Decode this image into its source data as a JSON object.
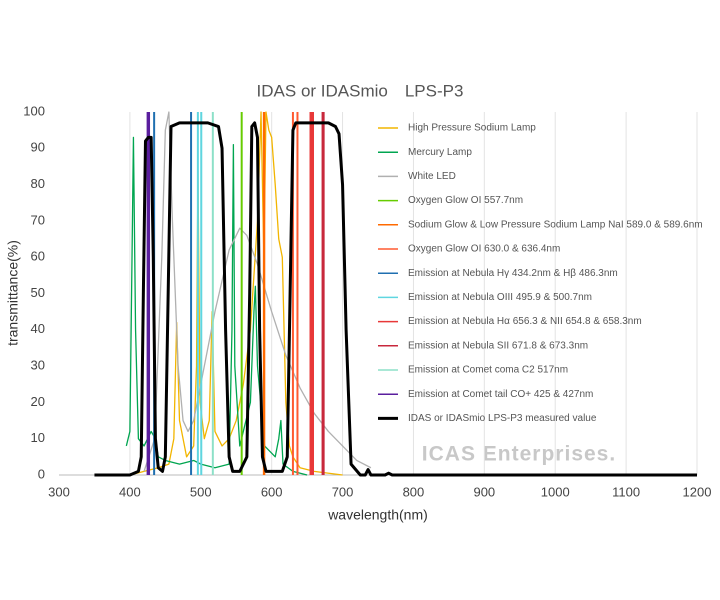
{
  "chart_data": {
    "type": "line",
    "title": "IDAS or IDASmio　LPS-P3",
    "x_label": "wavelength(nm)",
    "y_label": "transmittance(%)",
    "watermark": "ICAS Enterprises.",
    "xlim": [
      300,
      1200
    ],
    "xticks": [
      300,
      400,
      500,
      600,
      700,
      800,
      900,
      1000,
      1100,
      1200
    ],
    "ylim": [
      0,
      100
    ],
    "yticks": [
      0,
      10,
      20,
      30,
      40,
      50,
      60,
      70,
      80,
      90,
      100
    ],
    "grid": "x",
    "series": [
      {
        "name": "High Pressure Sodium Lamp",
        "color": "#f2b500",
        "x": [
          400,
          420,
          440,
          455,
          462,
          466,
          470,
          480,
          490,
          494,
          496,
          499,
          505,
          512,
          516,
          520,
          530,
          540,
          550,
          560,
          570,
          580,
          585,
          589,
          592,
          596,
          600,
          605,
          610,
          615,
          620,
          625,
          630,
          640,
          660,
          700
        ],
        "values": [
          0,
          1,
          2,
          3,
          10,
          42,
          15,
          5,
          8,
          30,
          84,
          20,
          10,
          15,
          45,
          12,
          8,
          10,
          15,
          25,
          40,
          70,
          100,
          60,
          100,
          95,
          93,
          80,
          65,
          60,
          20,
          8,
          5,
          2,
          1,
          0
        ]
      },
      {
        "name": "Mercury Lamp",
        "color": "#00a550",
        "x": [
          395,
          400,
          403,
          405,
          408,
          412,
          420,
          430,
          436,
          440,
          450,
          470,
          490,
          500,
          520,
          540,
          544,
          546,
          548,
          555,
          570,
          575,
          577,
          580,
          590,
          605,
          610,
          613,
          616,
          630,
          650
        ],
        "values": [
          8,
          12,
          60,
          93,
          40,
          10,
          8,
          12,
          10,
          5,
          4,
          3,
          4,
          3,
          2,
          3,
          40,
          91,
          30,
          8,
          20,
          45,
          52,
          30,
          8,
          5,
          10,
          15,
          3,
          1,
          0
        ]
      },
      {
        "name": "White LED",
        "color": "#b0b0b0",
        "x": [
          420,
          435,
          445,
          450,
          455,
          460,
          468,
          475,
          482,
          490,
          500,
          520,
          540,
          555,
          565,
          580,
          600,
          620,
          640,
          660,
          680,
          700,
          720,
          740
        ],
        "values": [
          1,
          10,
          60,
          95,
          100,
          70,
          30,
          15,
          12,
          15,
          25,
          45,
          62,
          68,
          66,
          58,
          45,
          33,
          24,
          17,
          12,
          8,
          4,
          2
        ]
      },
      {
        "name": "Oxygen Glow OI 557.7nm",
        "color": "#66cc00",
        "x": [
          557.7
        ]
      },
      {
        "name": "Sodium Glow & Low Pressure Sodium Lamp NaI 589.0 & 589.6nm",
        "color": "#ff6a00",
        "x": [
          589.0,
          589.6
        ]
      },
      {
        "name": "Oxygen Glow OI 630.0 & 636.4nm",
        "color": "#ff5a30",
        "x": [
          630.0,
          636.4
        ]
      },
      {
        "name": "Emission at Nebula Hγ 434.2nm & Hβ 486.3nm",
        "color": "#1f6fb0",
        "x": [
          434.2,
          486.3
        ]
      },
      {
        "name": "Emission at Nebula OIII 495.9 & 500.7nm",
        "color": "#5fd6e0",
        "x": [
          495.9,
          500.7
        ]
      },
      {
        "name": "Emission at Nebula Hα 656.3 & NII 654.8 & 658.3nm",
        "color": "#e83838",
        "x": [
          654.8,
          656.3,
          658.3
        ]
      },
      {
        "name": "Emission at Nebula SII 671.8 & 673.3nm",
        "color": "#c8283c",
        "x": [
          671.8,
          673.3
        ]
      },
      {
        "name": "Emission at Comet coma C2 517nm",
        "color": "#8de0c8",
        "x": [
          517
        ]
      },
      {
        "name": "Emission at Comet tail CO+ 425 & 427nm",
        "color": "#5a1e9e",
        "x": [
          425,
          427
        ]
      },
      {
        "name": "IDAS or IDASmio LPS-P3 measured value",
        "color": "#000000",
        "x": [
          350,
          400,
          412,
          416,
          419,
          422,
          426,
          430,
          433,
          436,
          440,
          446,
          450,
          454,
          458,
          470,
          490,
          510,
          525,
          530,
          535,
          540,
          545,
          555,
          565,
          569,
          572,
          576,
          580,
          583,
          587,
          592,
          600,
          615,
          622,
          626,
          630,
          634,
          640,
          660,
          680,
          690,
          695,
          700,
          705,
          712,
          725,
          732,
          736,
          740,
          760,
          765,
          770,
          800,
          900,
          1000,
          1100,
          1200
        ],
        "values": [
          0,
          0,
          1,
          5,
          50,
          92,
          93,
          93,
          60,
          10,
          2,
          1,
          5,
          50,
          96,
          97,
          97,
          97,
          96,
          90,
          40,
          5,
          1,
          1,
          5,
          50,
          96,
          97,
          93,
          40,
          5,
          1,
          1,
          1,
          5,
          50,
          95,
          97,
          97,
          97,
          97,
          96,
          94,
          80,
          40,
          3,
          0,
          0,
          1.5,
          0,
          0,
          0.5,
          0,
          0,
          0,
          0,
          0,
          0
        ]
      }
    ]
  }
}
